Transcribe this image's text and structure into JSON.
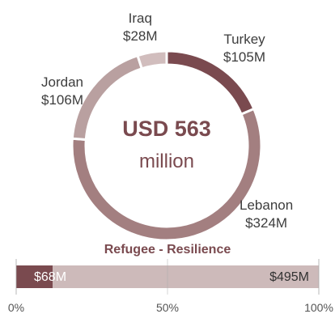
{
  "chart_data": [
    {
      "type": "pie",
      "variant": "donut",
      "center_value": "USD 563",
      "center_unit": "million",
      "slices": [
        {
          "name": "Turkey",
          "label": "$105M",
          "value": 105,
          "color": "#7a4a4f"
        },
        {
          "name": "Lebanon",
          "label": "$324M",
          "value": 324,
          "color": "#a37f80"
        },
        {
          "name": "Jordan",
          "label": "$106M",
          "value": 106,
          "color": "#b9a0a0"
        },
        {
          "name": "Iraq",
          "label": "$28M",
          "value": 28,
          "color": "#d1bdbd"
        }
      ]
    },
    {
      "type": "bar",
      "orientation": "horizontal",
      "stacked": true,
      "percent": true,
      "title": "Refugee - Resilience",
      "segments": [
        {
          "label": "$68M",
          "value": 68,
          "color": "#7a4a4f"
        },
        {
          "label": "$495M",
          "value": 495,
          "color": "#cdbaba"
        }
      ],
      "ticks": [
        "0%",
        "50%",
        "100%"
      ],
      "tick_values": [
        0,
        50,
        100
      ],
      "xlim": [
        0,
        100
      ]
    }
  ]
}
